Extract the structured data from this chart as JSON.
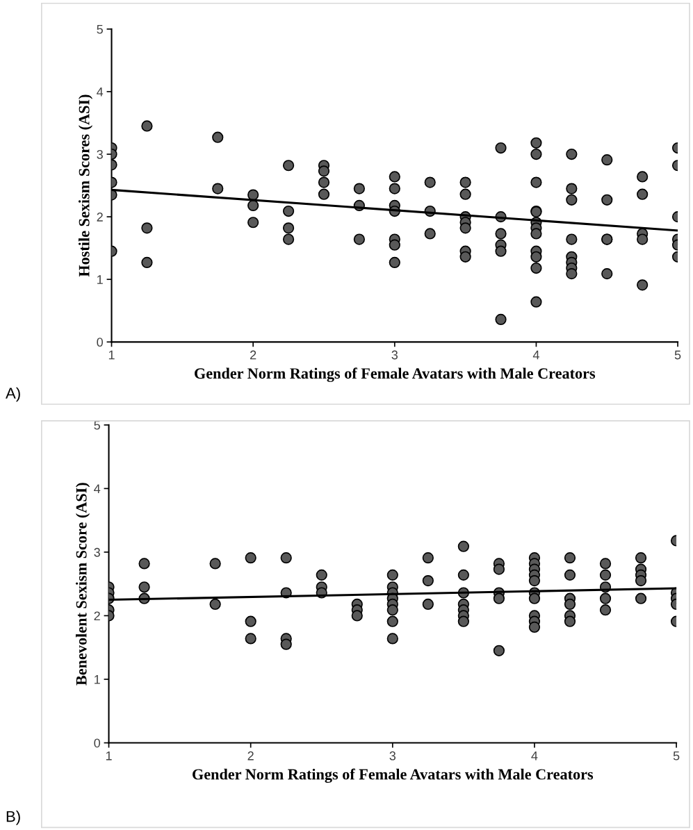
{
  "chart_data": [
    {
      "type": "scatter",
      "xlabel": "Gender Norm Ratings of Female Avatars with Male Creators",
      "ylabel": "Hostile Sexism Scores (ASI)",
      "annotations": [
        "A)"
      ],
      "xlim": [
        1,
        5
      ],
      "xticks": [
        1,
        2,
        3,
        4,
        5
      ],
      "ylim": [
        0,
        5
      ],
      "yticks": [
        0,
        1,
        2,
        3,
        4,
        5
      ],
      "marker": "circle",
      "grid": false,
      "legend": false,
      "series": [
        {
          "color": "#595959",
          "x": [
            1,
            1,
            1,
            1,
            1,
            1,
            1.25,
            1.25,
            1.25,
            1.75,
            1.75,
            2,
            2,
            2,
            2.25,
            2.25,
            2.25,
            2.25,
            2.5,
            2.5,
            2.5,
            2.5,
            2.75,
            2.75,
            2.75,
            3,
            3,
            3,
            3,
            3,
            3,
            3,
            3.25,
            3.25,
            3.25,
            3.5,
            3.5,
            3.5,
            3.5,
            3.5,
            3.5,
            3.5,
            3.75,
            3.75,
            3.75,
            3.75,
            3.75,
            3.75,
            4,
            4,
            4,
            4,
            4,
            4,
            4,
            4,
            4,
            4,
            4,
            4,
            4.25,
            4.25,
            4.25,
            4.25,
            4.25,
            4.25,
            4.25,
            4.25,
            4.5,
            4.5,
            4.5,
            4.5,
            4.5,
            4.75,
            4.75,
            4.75,
            4.75,
            4.75,
            5,
            5,
            5,
            5,
            5,
            5
          ],
          "values": [
            3.1,
            3.0,
            2.83,
            2.55,
            2.35,
            1.45,
            3.45,
            1.82,
            1.27,
            3.27,
            2.45,
            2.35,
            2.18,
            1.91,
            2.82,
            2.09,
            1.82,
            1.64,
            2.82,
            2.73,
            2.55,
            2.36,
            2.45,
            2.18,
            1.64,
            2.64,
            2.45,
            2.18,
            2.09,
            1.64,
            1.55,
            1.27,
            2.55,
            2.09,
            1.73,
            2.55,
            2.36,
            2.0,
            1.91,
            1.82,
            1.45,
            1.36,
            3.1,
            2.0,
            1.73,
            1.55,
            1.45,
            0.36,
            3.18,
            3.0,
            2.55,
            2.09,
            2.08,
            1.91,
            1.82,
            1.73,
            1.45,
            1.36,
            1.18,
            0.64,
            3.0,
            2.45,
            2.27,
            1.64,
            1.36,
            1.27,
            1.18,
            1.09,
            2.91,
            2.27,
            1.64,
            1.64,
            1.09,
            2.64,
            2.36,
            1.73,
            1.64,
            0.91,
            3.1,
            2.82,
            2.0,
            1.64,
            1.55,
            1.36
          ]
        },
        {
          "type": "line",
          "color": "#000000",
          "marker": "none",
          "x": [
            1,
            5
          ],
          "values": [
            2.43,
            1.78
          ]
        }
      ]
    },
    {
      "type": "scatter",
      "xlabel": "Gender Norm Ratings of Female Avatars with Male Creators",
      "ylabel": "Benevolent Sexism Score (ASI)",
      "annotations": [
        "B)"
      ],
      "xlim": [
        1,
        5
      ],
      "xticks": [
        1,
        2,
        3,
        4,
        5
      ],
      "ylim": [
        0,
        5
      ],
      "yticks": [
        0,
        1,
        2,
        3,
        4,
        5
      ],
      "marker": "circle",
      "grid": false,
      "legend": false,
      "series": [
        {
          "color": "#595959",
          "x": [
            1,
            1,
            1,
            1,
            1,
            1.25,
            1.25,
            1.25,
            1.75,
            1.75,
            2,
            2,
            2,
            2.25,
            2.25,
            2.25,
            2.25,
            2.5,
            2.5,
            2.5,
            2.75,
            2.75,
            2.75,
            3,
            3,
            3,
            3,
            3,
            3,
            3,
            3,
            3.25,
            3.25,
            3.25,
            3.5,
            3.5,
            3.5,
            3.5,
            3.5,
            3.5,
            3.5,
            3.75,
            3.75,
            3.75,
            3.75,
            3.75,
            4,
            4,
            4,
            4,
            4,
            4,
            4,
            4,
            4,
            4,
            4.25,
            4.25,
            4.25,
            4.25,
            4.25,
            4.25,
            4.5,
            4.5,
            4.5,
            4.5,
            4.5,
            4.75,
            4.75,
            4.75,
            4.75,
            4.75,
            5,
            5,
            5,
            5,
            5
          ],
          "values": [
            2.45,
            2.36,
            2.27,
            2.09,
            2.0,
            2.82,
            2.45,
            2.27,
            2.82,
            2.18,
            2.91,
            1.91,
            1.64,
            2.91,
            2.36,
            1.64,
            1.55,
            2.64,
            2.45,
            2.36,
            2.18,
            2.09,
            2.0,
            2.64,
            2.45,
            2.36,
            2.27,
            2.18,
            2.09,
            1.91,
            1.64,
            2.91,
            2.55,
            2.18,
            3.09,
            2.64,
            2.36,
            2.18,
            2.09,
            2.0,
            1.91,
            2.82,
            2.73,
            2.36,
            2.27,
            1.45,
            2.91,
            2.82,
            2.73,
            2.64,
            2.55,
            2.36,
            2.27,
            2.0,
            1.91,
            1.82,
            2.91,
            2.64,
            2.27,
            2.18,
            2.0,
            1.91,
            2.82,
            2.64,
            2.45,
            2.27,
            2.09,
            2.91,
            2.73,
            2.64,
            2.55,
            2.27,
            3.18,
            2.36,
            2.27,
            2.18,
            1.91
          ]
        },
        {
          "type": "line",
          "color": "#000000",
          "marker": "none",
          "x": [
            1,
            5
          ],
          "values": [
            2.25,
            2.43
          ]
        }
      ]
    }
  ]
}
